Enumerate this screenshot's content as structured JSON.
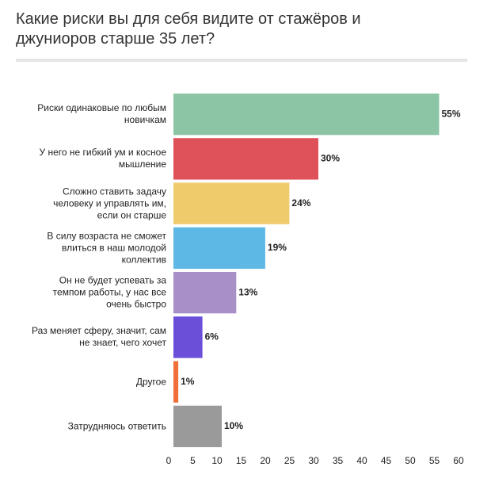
{
  "chart_data": {
    "type": "bar",
    "orientation": "horizontal",
    "title": "Какие риски вы для себя видите от стажёров и джуниоров старше 35 лет?",
    "categories": [
      "Риски одинаковые по любым новичкам",
      "У него не гибкий ум и косное мышление",
      "Сложно ставить задачу человеку и управлять им, если он старше",
      "В силу возраста не сможет влиться в наш молодой коллектив",
      "Он не будет успевать за темпом работы, у нас все очень быстро",
      "Раз меняет сферу, значит, сам не знает, чего хочет",
      "Другое",
      "Затрудняюсь ответить"
    ],
    "values": [
      55,
      30,
      24,
      19,
      13,
      6,
      1,
      10
    ],
    "value_labels": [
      "55%",
      "30%",
      "24%",
      "19%",
      "13%",
      "6%",
      "1%",
      "10%"
    ],
    "colors": [
      "#8cc5a5",
      "#e0525a",
      "#f0cb6b",
      "#5db8e6",
      "#a98fc8",
      "#6b4fd9",
      "#f0703a",
      "#9a9a9a"
    ],
    "xlim": [
      0,
      60
    ],
    "xticks": [
      0,
      5,
      10,
      15,
      20,
      25,
      30,
      35,
      40,
      45,
      50,
      55,
      60
    ]
  }
}
